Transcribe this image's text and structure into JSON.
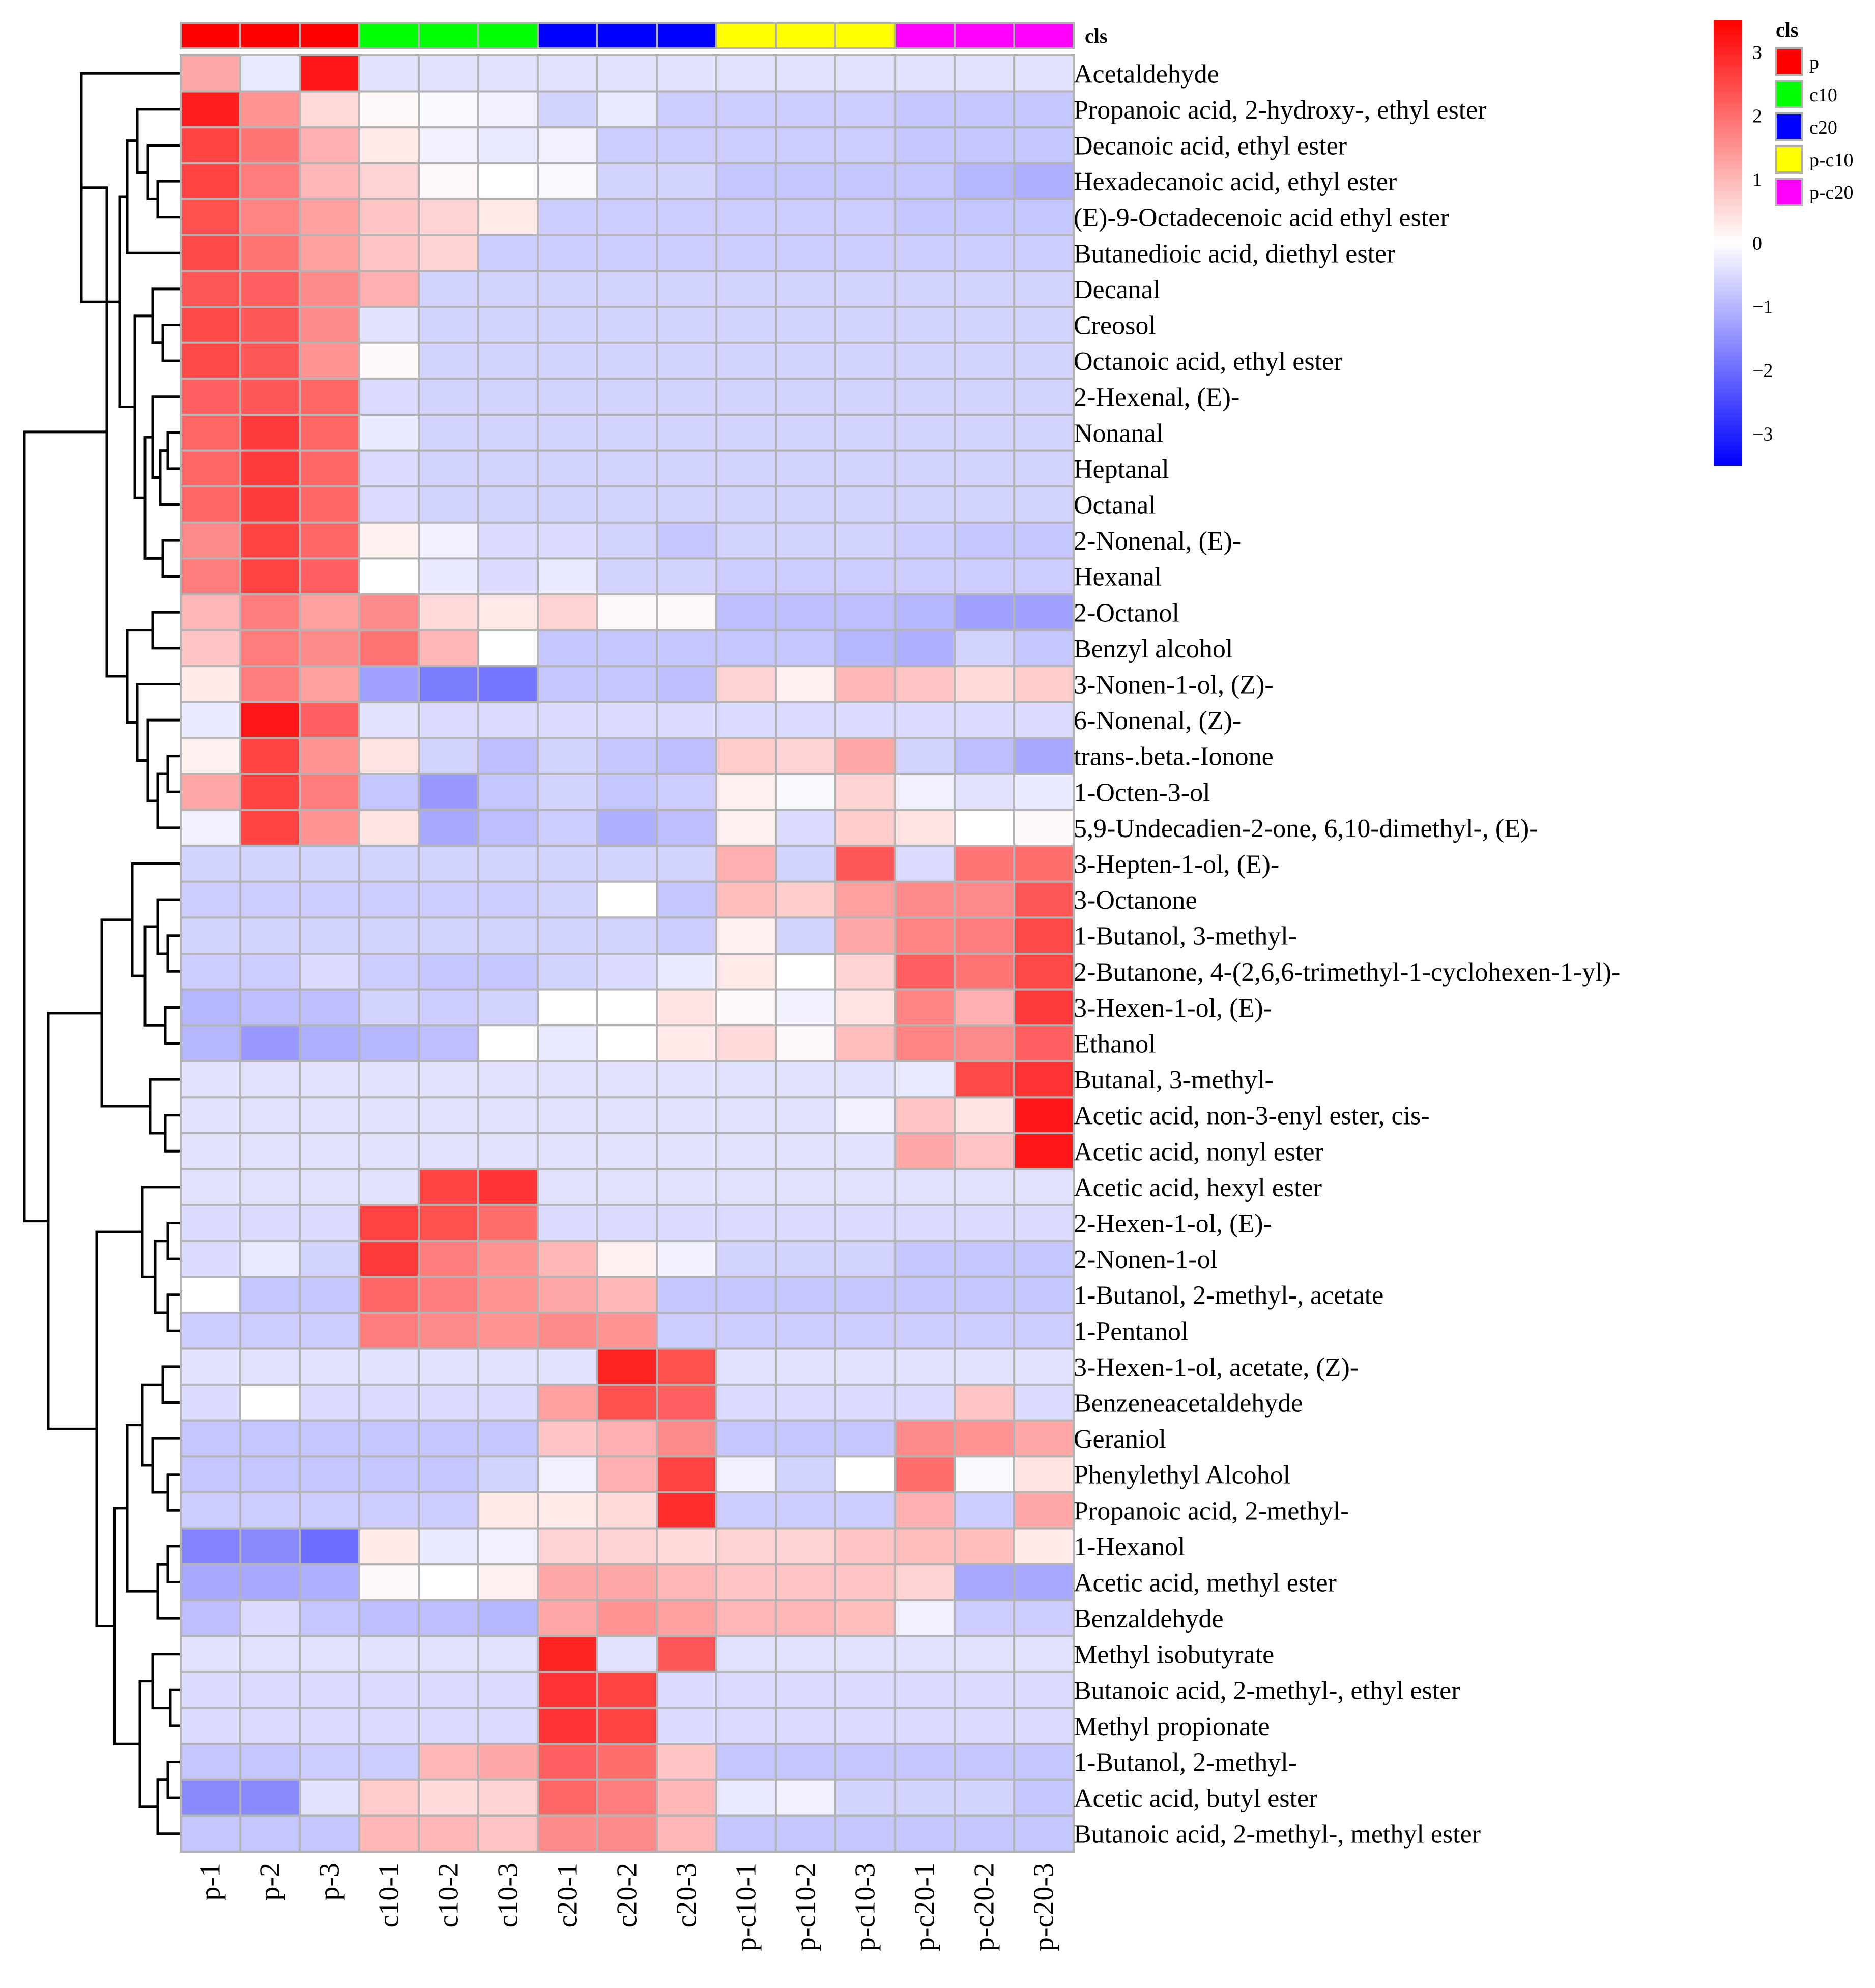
{
  "chart_data": {
    "type": "heatmap",
    "title": "",
    "annotation_title": "cls",
    "legend_title": "cls",
    "columns": [
      "p-1",
      "p-2",
      "p-3",
      "c10-1",
      "c10-2",
      "c10-3",
      "c20-1",
      "c20-2",
      "c20-3",
      "p-c10-1",
      "p-c10-2",
      "p-c10-3",
      "p-c20-1",
      "p-c20-2",
      "p-c20-3"
    ],
    "column_groups": [
      "p",
      "p",
      "p",
      "c10",
      "c10",
      "c10",
      "c20",
      "c20",
      "c20",
      "p-c10",
      "p-c10",
      "p-c10",
      "p-c20",
      "p-c20",
      "p-c20"
    ],
    "groups": [
      {
        "name": "p",
        "color": "#ff0000"
      },
      {
        "name": "c10",
        "color": "#00ff00"
      },
      {
        "name": "c20",
        "color": "#0000ff"
      },
      {
        "name": "p-c10",
        "color": "#ffff00"
      },
      {
        "name": "p-c20",
        "color": "#ff00ff"
      }
    ],
    "rows": [
      "Acetaldehyde",
      "Propanoic acid, 2-hydroxy-, ethyl ester",
      "Decanoic acid, ethyl ester",
      "Hexadecanoic acid, ethyl ester",
      "(E)-9-Octadecenoic acid ethyl ester",
      "Butanedioic acid, diethyl ester",
      "Decanal",
      "Creosol",
      "Octanoic acid, ethyl ester",
      "2-Hexenal, (E)-",
      "Nonanal",
      "Heptanal",
      "Octanal",
      "2-Nonenal, (E)-",
      "Hexanal",
      "2-Octanol",
      "Benzyl alcohol",
      "3-Nonen-1-ol, (Z)-",
      "6-Nonenal, (Z)-",
      "trans-.beta.-Ionone",
      "1-Octen-3-ol",
      "5,9-Undecadien-2-one, 6,10-dimethyl-, (E)-",
      "3-Hepten-1-ol, (E)-",
      "3-Octanone",
      "1-Butanol, 3-methyl-",
      "2-Butanone, 4-(2,6,6-trimethyl-1-cyclohexen-1-yl)-",
      "3-Hexen-1-ol, (E)-",
      "Ethanol",
      "Butanal, 3-methyl-",
      "Acetic acid, non-3-enyl ester, cis-",
      "Acetic acid, nonyl ester",
      "Acetic acid, hexyl ester",
      "2-Hexen-1-ol, (E)-",
      "2-Nonen-1-ol",
      "1-Butanol, 2-methyl-, acetate",
      "1-Pentanol",
      "3-Hexen-1-ol, acetate, (Z)-",
      "Benzeneacetaldehyde",
      "Geraniol",
      "Phenylethyl Alcohol",
      "Propanoic acid, 2-methyl-",
      "1-Hexanol",
      "Acetic acid, methyl ester",
      "Benzaldehyde",
      "Methyl isobutyrate",
      "Butanoic acid, 2-methyl-, ethyl ester",
      "Methyl propionate",
      "1-Butanol, 2-methyl-",
      "Acetic acid, butyl ester",
      "Butanoic acid, 2-methyl-, methyl ester"
    ],
    "values": [
      [
        1.2,
        -0.3,
        3.2,
        -0.4,
        -0.4,
        -0.4,
        -0.4,
        -0.4,
        -0.4,
        -0.4,
        -0.4,
        -0.4,
        -0.4,
        -0.4,
        -0.4
      ],
      [
        3.1,
        1.5,
        0.5,
        0.1,
        -0.1,
        -0.2,
        -0.6,
        -0.3,
        -0.7,
        -0.7,
        -0.7,
        -0.7,
        -0.8,
        -0.8,
        -0.8
      ],
      [
        2.6,
        1.9,
        1.1,
        0.3,
        -0.2,
        -0.3,
        -0.2,
        -0.7,
        -0.7,
        -0.7,
        -0.7,
        -0.7,
        -0.8,
        -0.8,
        -0.8
      ],
      [
        2.6,
        1.8,
        1.0,
        0.6,
        0.1,
        0.0,
        -0.1,
        -0.6,
        -0.6,
        -0.8,
        -0.8,
        -0.8,
        -0.8,
        -1.0,
        -1.1
      ],
      [
        2.4,
        1.7,
        1.3,
        0.8,
        0.6,
        0.3,
        -0.7,
        -0.7,
        -0.7,
        -0.7,
        -0.7,
        -0.7,
        -0.8,
        -0.8,
        -0.8
      ],
      [
        2.5,
        1.9,
        1.3,
        0.8,
        0.6,
        -0.7,
        -0.7,
        -0.7,
        -0.7,
        -0.7,
        -0.7,
        -0.7,
        -0.7,
        -0.7,
        -0.7
      ],
      [
        2.3,
        2.2,
        1.6,
        1.1,
        -0.6,
        -0.6,
        -0.6,
        -0.6,
        -0.6,
        -0.6,
        -0.6,
        -0.6,
        -0.6,
        -0.6,
        -0.6
      ],
      [
        2.5,
        2.3,
        1.6,
        -0.4,
        -0.6,
        -0.6,
        -0.6,
        -0.6,
        -0.6,
        -0.6,
        -0.6,
        -0.6,
        -0.6,
        -0.6,
        -0.6
      ],
      [
        2.5,
        2.3,
        1.5,
        0.1,
        -0.6,
        -0.6,
        -0.6,
        -0.6,
        -0.6,
        -0.6,
        -0.6,
        -0.6,
        -0.6,
        -0.6,
        -0.6
      ],
      [
        2.2,
        2.3,
        2.1,
        -0.5,
        -0.6,
        -0.6,
        -0.6,
        -0.6,
        -0.6,
        -0.6,
        -0.6,
        -0.6,
        -0.6,
        -0.6,
        -0.6
      ],
      [
        2.1,
        2.7,
        2.1,
        -0.3,
        -0.6,
        -0.6,
        -0.6,
        -0.6,
        -0.6,
        -0.6,
        -0.6,
        -0.6,
        -0.6,
        -0.6,
        -0.6
      ],
      [
        2.1,
        2.7,
        2.1,
        -0.5,
        -0.6,
        -0.6,
        -0.6,
        -0.6,
        -0.6,
        -0.6,
        -0.6,
        -0.6,
        -0.6,
        -0.6,
        -0.6
      ],
      [
        2.1,
        2.7,
        2.1,
        -0.5,
        -0.6,
        -0.6,
        -0.6,
        -0.6,
        -0.6,
        -0.6,
        -0.6,
        -0.6,
        -0.6,
        -0.6,
        -0.6
      ],
      [
        1.6,
        2.6,
        2.1,
        0.2,
        -0.2,
        -0.5,
        -0.5,
        -0.6,
        -0.8,
        -0.6,
        -0.6,
        -0.6,
        -0.7,
        -0.8,
        -0.8
      ],
      [
        1.8,
        2.6,
        2.2,
        0.0,
        -0.3,
        -0.5,
        -0.3,
        -0.6,
        -0.6,
        -0.7,
        -0.7,
        -0.7,
        -0.7,
        -0.7,
        -0.7
      ],
      [
        1.0,
        1.8,
        1.3,
        1.6,
        0.5,
        0.3,
        0.6,
        0.1,
        0.1,
        -0.9,
        -0.9,
        -0.9,
        -1.0,
        -1.3,
        -1.3
      ],
      [
        0.8,
        1.8,
        1.6,
        1.9,
        1.0,
        0.0,
        -0.8,
        -0.8,
        -0.8,
        -0.8,
        -0.8,
        -1.0,
        -1.1,
        -0.6,
        -0.8
      ],
      [
        0.3,
        1.8,
        1.3,
        -1.3,
        -1.8,
        -1.9,
        -0.8,
        -0.8,
        -0.9,
        0.6,
        0.2,
        1.0,
        0.8,
        0.5,
        0.7
      ],
      [
        -0.3,
        3.2,
        2.2,
        -0.4,
        -0.5,
        -0.5,
        -0.5,
        -0.5,
        -0.5,
        -0.5,
        -0.5,
        -0.5,
        -0.5,
        -0.5,
        -0.5
      ],
      [
        0.2,
        2.6,
        1.5,
        0.4,
        -0.6,
        -0.9,
        -0.6,
        -0.8,
        -0.9,
        0.7,
        0.6,
        1.2,
        -0.6,
        -0.9,
        -1.2
      ],
      [
        1.2,
        2.6,
        1.8,
        -0.8,
        -1.4,
        -0.8,
        -0.6,
        -0.8,
        -0.7,
        0.2,
        -0.1,
        0.6,
        -0.2,
        -0.4,
        -0.3
      ],
      [
        -0.2,
        2.6,
        1.5,
        0.4,
        -1.2,
        -0.9,
        -0.7,
        -1.1,
        -0.9,
        0.2,
        -0.5,
        0.7,
        0.4,
        0.0,
        0.1
      ],
      [
        -0.6,
        -0.6,
        -0.6,
        -0.6,
        -0.6,
        -0.6,
        -0.6,
        -0.6,
        -0.6,
        1.1,
        -0.6,
        2.3,
        -0.5,
        1.9,
        2.0
      ],
      [
        -0.7,
        -0.7,
        -0.7,
        -0.7,
        -0.7,
        -0.7,
        -0.6,
        0.0,
        -0.8,
        0.9,
        0.7,
        1.3,
        1.6,
        1.6,
        2.3
      ],
      [
        -0.6,
        -0.6,
        -0.6,
        -0.6,
        -0.6,
        -0.6,
        -0.6,
        -0.6,
        -0.7,
        0.2,
        -0.6,
        1.2,
        1.7,
        1.8,
        2.5
      ],
      [
        -0.7,
        -0.7,
        -0.5,
        -0.7,
        -0.8,
        -0.8,
        -0.6,
        -0.5,
        -0.3,
        0.3,
        0.0,
        0.6,
        2.2,
        1.9,
        2.5
      ],
      [
        -1.0,
        -0.9,
        -0.9,
        -0.6,
        -0.7,
        -0.6,
        0.0,
        0.0,
        0.4,
        0.1,
        -0.2,
        0.4,
        1.7,
        1.1,
        2.7
      ],
      [
        -1.0,
        -1.4,
        -1.1,
        -1.0,
        -0.9,
        0.0,
        -0.3,
        0.0,
        0.3,
        0.5,
        0.1,
        0.9,
        1.7,
        1.6,
        2.2
      ],
      [
        -0.4,
        -0.4,
        -0.4,
        -0.4,
        -0.4,
        -0.4,
        -0.4,
        -0.4,
        -0.4,
        -0.4,
        -0.4,
        -0.4,
        -0.3,
        2.5,
        2.8
      ],
      [
        -0.4,
        -0.4,
        -0.4,
        -0.4,
        -0.4,
        -0.4,
        -0.4,
        -0.4,
        -0.4,
        -0.4,
        -0.4,
        -0.2,
        0.8,
        0.4,
        3.2
      ],
      [
        -0.4,
        -0.4,
        -0.4,
        -0.4,
        -0.4,
        -0.4,
        -0.4,
        -0.4,
        -0.4,
        -0.4,
        -0.4,
        -0.4,
        1.2,
        0.8,
        3.2
      ],
      [
        -0.4,
        -0.4,
        -0.4,
        -0.4,
        2.6,
        2.8,
        -0.4,
        -0.4,
        -0.4,
        -0.4,
        -0.4,
        -0.4,
        -0.4,
        -0.4,
        -0.4
      ],
      [
        -0.5,
        -0.5,
        -0.5,
        2.6,
        2.4,
        2.0,
        -0.5,
        -0.5,
        -0.5,
        -0.5,
        -0.5,
        -0.5,
        -0.5,
        -0.5,
        -0.5
      ],
      [
        -0.5,
        -0.3,
        -0.6,
        2.7,
        1.8,
        1.5,
        1.0,
        0.2,
        -0.2,
        -0.6,
        -0.6,
        -0.6,
        -0.8,
        -0.8,
        -0.8
      ],
      [
        0.0,
        -0.8,
        -0.8,
        2.1,
        1.8,
        1.5,
        1.2,
        1.0,
        -0.8,
        -0.8,
        -0.8,
        -0.8,
        -0.8,
        -0.8,
        -0.8
      ],
      [
        -0.7,
        -0.7,
        -0.7,
        1.8,
        1.6,
        1.5,
        1.6,
        1.5,
        -0.7,
        -0.7,
        -0.7,
        -0.7,
        -0.7,
        -0.7,
        -0.7
      ],
      [
        -0.4,
        -0.4,
        -0.4,
        -0.4,
        -0.4,
        -0.4,
        -0.4,
        3.0,
        2.4,
        -0.4,
        -0.4,
        -0.4,
        -0.4,
        -0.4,
        -0.4
      ],
      [
        -0.5,
        0.0,
        -0.5,
        -0.5,
        -0.5,
        -0.5,
        1.3,
        2.4,
        2.2,
        -0.5,
        -0.5,
        -0.5,
        -0.5,
        0.8,
        -0.5
      ],
      [
        -0.8,
        -0.8,
        -0.8,
        -0.8,
        -0.8,
        -0.8,
        0.8,
        1.1,
        1.6,
        -0.8,
        -0.8,
        -0.8,
        1.6,
        1.5,
        1.2
      ],
      [
        -0.8,
        -0.8,
        -0.8,
        -0.8,
        -0.8,
        -0.6,
        -0.2,
        1.1,
        2.6,
        -0.2,
        -0.6,
        0.0,
        2.0,
        -0.1,
        0.4
      ],
      [
        -0.7,
        -0.7,
        -0.7,
        -0.7,
        -0.7,
        0.3,
        0.3,
        0.5,
        2.9,
        -0.7,
        -0.7,
        -0.7,
        1.1,
        -0.7,
        1.2
      ],
      [
        -1.7,
        -1.6,
        -2.0,
        0.3,
        -0.3,
        -0.2,
        0.6,
        0.6,
        0.5,
        0.6,
        0.6,
        0.8,
        0.9,
        0.9,
        0.3
      ],
      [
        -1.2,
        -1.2,
        -1.1,
        0.1,
        0.0,
        0.2,
        1.2,
        1.2,
        1.0,
        0.8,
        0.8,
        0.8,
        0.6,
        -1.2,
        -1.2
      ],
      [
        -0.9,
        -0.5,
        -0.8,
        -0.9,
        -0.9,
        -1.0,
        1.2,
        1.5,
        1.3,
        1.0,
        1.0,
        0.9,
        -0.2,
        -0.7,
        -0.7
      ],
      [
        -0.4,
        -0.4,
        -0.4,
        -0.4,
        -0.4,
        -0.4,
        3.0,
        -0.4,
        2.3,
        -0.4,
        -0.4,
        -0.4,
        -0.4,
        -0.4,
        -0.4
      ],
      [
        -0.5,
        -0.5,
        -0.5,
        -0.5,
        -0.5,
        -0.5,
        2.8,
        2.6,
        -0.5,
        -0.5,
        -0.5,
        -0.5,
        -0.5,
        -0.5,
        -0.5
      ],
      [
        -0.5,
        -0.5,
        -0.5,
        -0.5,
        -0.5,
        -0.5,
        2.8,
        2.6,
        -0.5,
        -0.5,
        -0.5,
        -0.5,
        -0.5,
        -0.5,
        -0.5
      ],
      [
        -0.8,
        -0.8,
        -0.7,
        -0.7,
        1.0,
        1.2,
        2.2,
        2.0,
        0.8,
        -0.8,
        -0.8,
        -0.8,
        -0.8,
        -0.8,
        -0.8
      ],
      [
        -1.6,
        -1.6,
        -0.4,
        0.7,
        0.5,
        0.6,
        2.1,
        1.8,
        1.0,
        -0.3,
        -0.2,
        -0.6,
        -0.6,
        -0.6,
        -0.8
      ],
      [
        -0.8,
        -0.8,
        -0.8,
        1.0,
        1.0,
        0.8,
        1.6,
        1.6,
        1.0,
        -0.8,
        -0.8,
        -0.8,
        -0.8,
        -0.8,
        -0.8
      ]
    ],
    "color_scale": {
      "min": -3.5,
      "max": 3.5,
      "low": "#0000ff",
      "mid": "#ffffff",
      "high": "#ff0000"
    },
    "colorbar_ticks": [
      3,
      2,
      1,
      0,
      -1,
      -2,
      -3
    ],
    "colorbar_tick_labels": [
      "3",
      "2",
      "1",
      "0",
      "−1",
      "−2",
      "−3"
    ],
    "row_dendrogram": "hierarchical clustering, left side"
  }
}
